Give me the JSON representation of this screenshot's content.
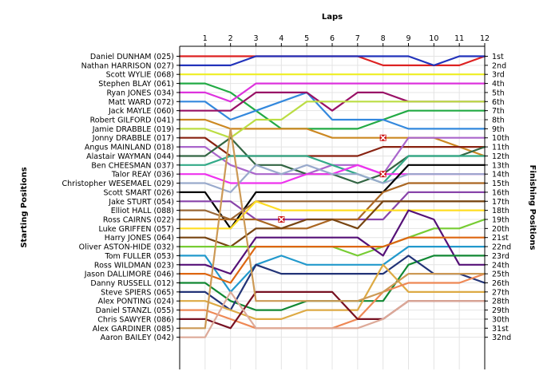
{
  "chart_data": {
    "type": "line",
    "title": "",
    "x_axis_title": "Laps",
    "left_axis_title": "Starting Positions",
    "right_axis_title": "Finishing Positions",
    "laps": [
      1,
      2,
      3,
      4,
      5,
      6,
      7,
      8,
      9,
      10,
      11,
      12
    ],
    "xlim": [
      0,
      12
    ],
    "y_inverted": true,
    "grid": true,
    "starting_positions": [
      "Daniel DUNHAM (025)",
      "Nathan HARRISON (027)",
      "Scott WYLIE (068)",
      "Stephen BLAY (061)",
      "Ryan JONES (034)",
      "Matt WARD (072)",
      "Jack MAYLE (060)",
      "Robert GILFORD (041)",
      "Jamie DRABBLE (019)",
      "Jonny DRABBLE (017)",
      "Angus MAINLAND (018)",
      "Alastair WAYMAN (044)",
      "Ben CHEESMAN (037)",
      "Talor REAY (036)",
      "Christopher WESEMAEL (029)",
      "Scott SMART (026)",
      "Jake STURT (054)",
      "Elliot HALL (088)",
      "Ross CAIRNS (022)",
      "Luke GRIFFEN (057)",
      "Harry JONES (064)",
      "Oliver ASTON-HIDE (032)",
      "Tom FULLER (053)",
      "Ross WILDMAN (023)",
      "Jason DALLIMORE (046)",
      "Danny RUSSELL (012)",
      "Steve SPIERS (065)",
      "Alex PONTING (024)",
      "Daniel STANZL (055)",
      "Chris SAWYER (086)",
      "Alex GARDINER (085)",
      "Aaron BAILEY (042)"
    ],
    "finishing_positions": [
      "1st",
      "2nd",
      "3rd",
      "4th",
      "5th",
      "6th",
      "7th",
      "8th",
      "9th",
      "10th",
      "11th",
      "12th",
      "13th",
      "14th",
      "15th",
      "16th",
      "17th",
      "18th",
      "19th",
      "20th",
      "21st",
      "22nd",
      "23rd",
      "24th",
      "25th",
      "26th",
      "27th",
      "28th",
      "29th",
      "30th",
      "31st",
      "32nd"
    ],
    "series": [
      {
        "color": "#dd2222",
        "positions": [
          1,
          1,
          1,
          1,
          1,
          1,
          1,
          2,
          2,
          2,
          2,
          1
        ]
      },
      {
        "color": "#2233bb",
        "positions": [
          2,
          2,
          1,
          1,
          1,
          1,
          1,
          1,
          1,
          2,
          1,
          1
        ]
      },
      {
        "color": "#eeee22",
        "positions": [
          3,
          3,
          3,
          3,
          3,
          3,
          3,
          3,
          3,
          3,
          3,
          3
        ]
      },
      {
        "color": "#22aa44",
        "positions": [
          4,
          5,
          7,
          9,
          9,
          9,
          9,
          8,
          7,
          7,
          7,
          7
        ]
      },
      {
        "color": "#dd33dd",
        "positions": [
          5,
          6,
          4,
          4,
          4,
          4,
          4,
          4,
          4,
          4,
          4,
          4
        ]
      },
      {
        "color": "#3388dd",
        "positions": [
          6,
          8,
          7,
          6,
          5,
          8,
          8,
          8,
          9,
          9,
          9,
          9
        ]
      },
      {
        "color": "#991166",
        "positions": [
          7,
          7,
          5,
          5,
          5,
          7,
          5,
          5,
          6,
          6,
          6,
          6
        ]
      },
      {
        "color": "#cc8822",
        "positions": [
          8,
          9,
          9,
          9,
          9,
          10,
          10,
          10,
          10,
          10,
          11,
          12
        ]
      },
      {
        "color": "#bbdd44",
        "positions": [
          9,
          10,
          8,
          8,
          6,
          6,
          6,
          6,
          6,
          6,
          6,
          6
        ]
      },
      {
        "color": "#882211",
        "positions": [
          10,
          12,
          12,
          12,
          12,
          12,
          12,
          11,
          11,
          11,
          11,
          11
        ]
      },
      {
        "color": "#aa66cc",
        "positions": [
          11,
          13,
          14,
          14,
          14,
          13,
          13,
          14,
          10,
          10,
          10,
          10
        ]
      },
      {
        "color": "#336644",
        "positions": [
          12,
          10,
          13,
          13,
          14,
          14,
          15,
          14,
          12,
          12,
          12,
          11
        ]
      },
      {
        "color": "#33aa88",
        "positions": [
          13,
          12,
          12,
          12,
          12,
          13,
          14,
          15,
          12,
          12,
          12,
          12
        ]
      },
      {
        "color": "#ee33ee",
        "positions": [
          14,
          15,
          15,
          15,
          14,
          14,
          13,
          14,
          14,
          14,
          14,
          14
        ]
      },
      {
        "color": "#99aacc",
        "positions": [
          15,
          16,
          13,
          14,
          13,
          14,
          14,
          15,
          14,
          14,
          14,
          14
        ]
      },
      {
        "color": "#000000",
        "positions": [
          16,
          20,
          16,
          16,
          16,
          16,
          16,
          16,
          13,
          13,
          13,
          13
        ]
      },
      {
        "color": "#8844aa",
        "positions": [
          17,
          17,
          19,
          19,
          19,
          19,
          19,
          19,
          16,
          16,
          16,
          16
        ]
      },
      {
        "color": "#996633",
        "positions": [
          18,
          19,
          17,
          17,
          17,
          17,
          17,
          17,
          17,
          17,
          17,
          17
        ]
      },
      {
        "color": "#aa6622",
        "positions": [
          19,
          19,
          19,
          20,
          20,
          19,
          19,
          16,
          15,
          15,
          15,
          15
        ]
      },
      {
        "color": "#ffdd22",
        "positions": [
          20,
          20,
          17,
          18,
          18,
          18,
          18,
          18,
          18,
          18,
          18,
          18
        ]
      },
      {
        "color": "#774411",
        "positions": [
          21,
          22,
          20,
          20,
          19,
          19,
          20,
          17,
          17,
          17,
          17,
          17
        ]
      },
      {
        "color": "#77cc33",
        "positions": [
          22,
          22,
          22,
          22,
          22,
          22,
          23,
          22,
          21,
          20,
          20,
          19
        ]
      },
      {
        "color": "#2299cc",
        "positions": [
          23,
          27,
          24,
          23,
          24,
          24,
          24,
          24,
          22,
          22,
          22,
          22
        ]
      },
      {
        "color": "#551177",
        "positions": [
          24,
          25,
          21,
          21,
          21,
          21,
          21,
          23,
          18,
          19,
          24,
          24
        ]
      },
      {
        "color": "#dd6611",
        "positions": [
          25,
          26,
          22,
          22,
          22,
          22,
          22,
          22,
          21,
          21,
          21,
          21
        ]
      },
      {
        "color": "#118833",
        "positions": [
          26,
          28,
          29,
          29,
          28,
          28,
          28,
          28,
          24,
          23,
          23,
          23
        ]
      },
      {
        "color": "#223377",
        "positions": [
          27,
          29,
          24,
          25,
          25,
          25,
          25,
          25,
          23,
          25,
          25,
          26
        ]
      },
      {
        "color": "#ddaa44",
        "positions": [
          28,
          29,
          30,
          30,
          29,
          29,
          29,
          24,
          27,
          27,
          27,
          27
        ]
      },
      {
        "color": "#ee8855",
        "positions": [
          29,
          30,
          31,
          31,
          31,
          31,
          30,
          27,
          26,
          26,
          26,
          25
        ]
      },
      {
        "color": "#771122",
        "positions": [
          30,
          31,
          27,
          27,
          27,
          27,
          30,
          30,
          28,
          28,
          28,
          28
        ]
      },
      {
        "color": "#cc9955",
        "positions": [
          31,
          9,
          28,
          28,
          28,
          28,
          28,
          27,
          25,
          25,
          25,
          25
        ]
      },
      {
        "color": "#ddaa99",
        "positions": [
          32,
          27,
          31,
          31,
          31,
          31,
          31,
          30,
          28,
          28,
          28,
          28
        ]
      }
    ],
    "retirements": [
      {
        "lap": 4,
        "position": 19
      },
      {
        "lap": 8,
        "position": 10
      },
      {
        "lap": 8,
        "position": 14
      }
    ]
  }
}
